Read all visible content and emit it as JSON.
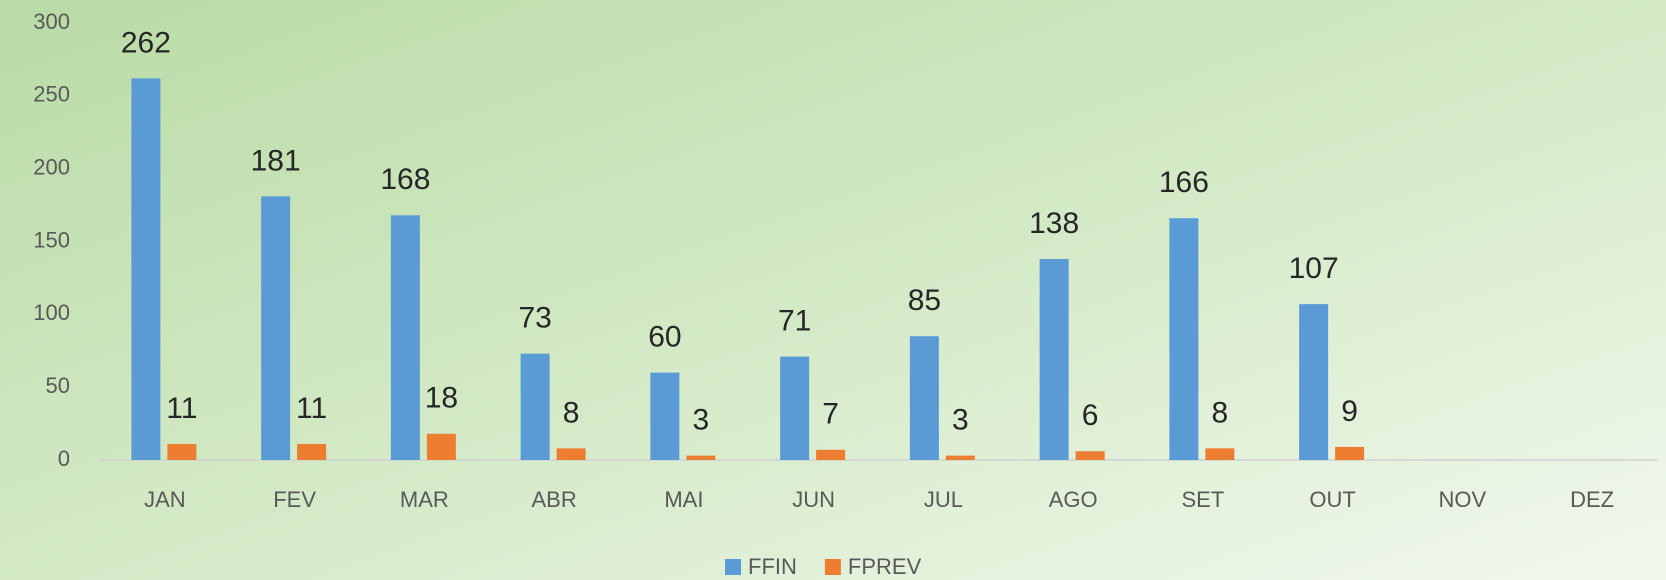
{
  "chart_data": {
    "type": "bar",
    "categories": [
      "JAN",
      "FEV",
      "MAR",
      "ABR",
      "MAI",
      "JUN",
      "JUL",
      "AGO",
      "SET",
      "OUT",
      "NOV",
      "DEZ"
    ],
    "series": [
      {
        "name": "FFIN",
        "color": "#5b9bd5",
        "values": [
          262,
          181,
          168,
          73,
          60,
          71,
          85,
          138,
          166,
          107,
          null,
          null
        ]
      },
      {
        "name": "FPREV",
        "color": "#ed7d31",
        "values": [
          11,
          11,
          18,
          8,
          3,
          7,
          3,
          6,
          8,
          9,
          null,
          null
        ]
      }
    ],
    "ylim": [
      0,
      300
    ],
    "yticks": [
      0,
      50,
      100,
      150,
      200,
      250,
      300
    ],
    "grid": false,
    "legend": "bottom"
  }
}
